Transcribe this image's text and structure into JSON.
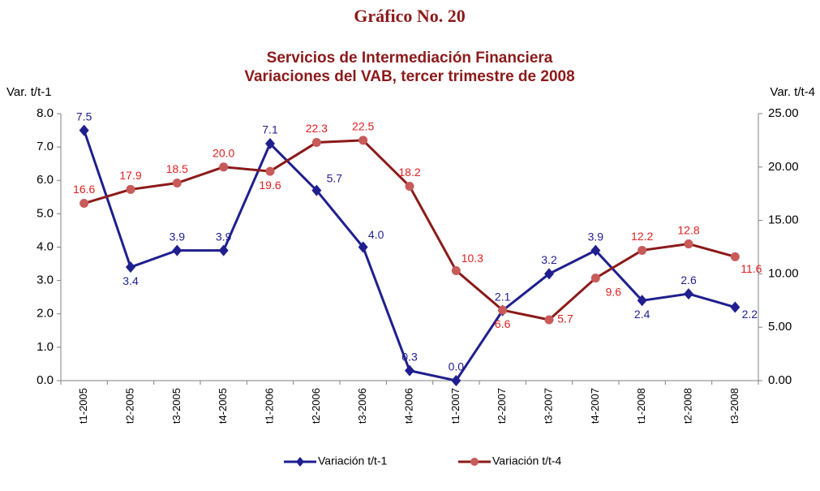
{
  "chart_data": {
    "type": "line",
    "heading": "Gráfico No. 20",
    "title": [
      "Servicios de Intermediación Financiera",
      "Variaciones del VAB, tercer trimestre de 2008"
    ],
    "y_label": "Var. t/t-1",
    "y2_label": "Var. t/t-4",
    "categories": [
      "t1-2005",
      "t2-2005",
      "t3-2005",
      "t4-2005",
      "t1-2006",
      "t2-2006",
      "t3-2006",
      "t4-2006",
      "t1-2007",
      "t2-2007",
      "t3-2007",
      "t4-2007",
      "t1-2008",
      "t2-2008",
      "t3-2008"
    ],
    "series": [
      {
        "name": "Variación t/t-1",
        "color": "#1f1f8f",
        "marker": "diamond",
        "axis": "y",
        "values": [
          7.5,
          3.4,
          3.9,
          3.9,
          7.1,
          5.7,
          4.0,
          0.3,
          0.0,
          2.1,
          3.2,
          3.9,
          2.4,
          2.6,
          2.2
        ],
        "value_labels": [
          "7.5",
          "3.4",
          "3.9",
          "3.9",
          "7.1",
          "5.7",
          "4.0",
          "0.3",
          "0.0",
          "2.1",
          "3.2",
          "3.9",
          "2.4",
          "2.6",
          "2.2"
        ]
      },
      {
        "name": "Variación t/t-4",
        "color": "#8b1a1a",
        "marker": "circle",
        "marker_color": "#c85a5a",
        "label_color": "#e02020",
        "axis": "y2",
        "values": [
          16.6,
          17.9,
          18.5,
          20.0,
          19.6,
          22.3,
          22.5,
          18.2,
          10.3,
          6.6,
          5.7,
          9.6,
          12.2,
          12.8,
          11.6
        ],
        "value_labels": [
          "16.6",
          "17.9",
          "18.5",
          "20.0",
          "19.6",
          "22.3",
          "22.5",
          "18.2",
          "10.3",
          "6.6",
          "5.7",
          "9.6",
          "12.2",
          "12.8",
          "11.6"
        ]
      }
    ],
    "ylim": [
      0,
      8
    ],
    "yticks": [
      {
        "value": 0,
        "label": "0.0"
      },
      {
        "value": 1,
        "label": "1.0"
      },
      {
        "value": 2,
        "label": "2.0"
      },
      {
        "value": 3,
        "label": "3.0"
      },
      {
        "value": 4,
        "label": "4.0"
      },
      {
        "value": 5,
        "label": "5.0"
      },
      {
        "value": 6,
        "label": "6.0"
      },
      {
        "value": 7,
        "label": "7.0"
      },
      {
        "value": 8,
        "label": "8.0"
      }
    ],
    "y2lim": [
      0,
      25
    ],
    "y2ticks": [
      {
        "value": 0,
        "label": "0.00"
      },
      {
        "value": 5,
        "label": "5.00"
      },
      {
        "value": 10,
        "label": "10.00"
      },
      {
        "value": 15,
        "label": "15.00"
      },
      {
        "value": 20,
        "label": "20.00"
      },
      {
        "value": 25,
        "label": "25.00"
      }
    ],
    "legend": "bottom"
  }
}
